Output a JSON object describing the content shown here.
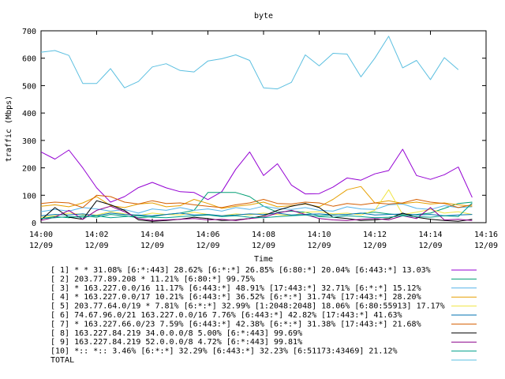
{
  "chart_data": {
    "type": "line",
    "title": "byte",
    "xlabel": "Time",
    "ylabel": "traffic (Mbps)",
    "ylim": [
      0,
      700
    ],
    "y_ticks": [
      "0",
      "100",
      "200",
      "300",
      "400",
      "500",
      "600",
      "700"
    ],
    "x_ticks": [
      {
        "time": "14:00",
        "date": "12/09"
      },
      {
        "time": "14:02",
        "date": "12/09"
      },
      {
        "time": "14:04",
        "date": "12/09"
      },
      {
        "time": "14:06",
        "date": "12/09"
      },
      {
        "time": "14:08",
        "date": "12/09"
      },
      {
        "time": "14:10",
        "date": "12/09"
      },
      {
        "time": "14:12",
        "date": "12/09"
      },
      {
        "time": "14:14",
        "date": "12/09"
      },
      {
        "time": "14:16",
        "date": "12/09"
      }
    ],
    "x_start": "14:00",
    "x_end": "14:16",
    "x_interval_seconds": 30,
    "grid": false,
    "legend_placement": "bottom",
    "series": [
      {
        "name": "[ 1] * * 31.08%  [6:*:443] 28.62% [6:*:*] 26.85% [6:80:*] 20.04% [6:443:*] 13.03%",
        "color": "#9400d3",
        "values": [
          258,
          232,
          265,
          200,
          127,
          75,
          95,
          128,
          147,
          127,
          113,
          110,
          84,
          113,
          195,
          258,
          172,
          215,
          137,
          105,
          106,
          130,
          163,
          155,
          178,
          190,
          268,
          172,
          158,
          175,
          203,
          92
        ]
      },
      {
        "name": "[ 2] 203.77.89.208 * 11.21%  [6:80:*] 99.75%",
        "color": "#009e73",
        "values": [
          15,
          22,
          18,
          25,
          20,
          30,
          25,
          18,
          22,
          30,
          35,
          45,
          110,
          110,
          110,
          95,
          60,
          38,
          42,
          38,
          25,
          28,
          30,
          34,
          38,
          32,
          28,
          30,
          35,
          52,
          70,
          75
        ]
      },
      {
        "name": "[ 3] * 163.227.0.0/16 11.17%  [6:443:*] 48.91% [17:443:*] 32.71% [6:*:*] 15.12%",
        "color": "#56b4e9",
        "values": [
          40,
          48,
          42,
          55,
          50,
          42,
          48,
          35,
          50,
          45,
          55,
          45,
          50,
          42,
          55,
          48,
          60,
          52,
          48,
          55,
          45,
          42,
          58,
          50,
          48,
          65,
          68,
          52,
          48,
          62,
          55,
          58
        ]
      },
      {
        "name": "[ 4] * 163.227.0.0/17 10.21%  [6:443:*] 36.52% [6:*:*] 31.74% [17:443:*] 28.20%",
        "color": "#e69f00",
        "values": [
          60,
          65,
          58,
          72,
          95,
          62,
          55,
          68,
          72,
          58,
          62,
          85,
          70,
          52,
          60,
          65,
          75,
          58,
          62,
          68,
          58,
          85,
          120,
          132,
          72,
          80,
          70,
          75,
          68,
          72,
          65,
          60
        ]
      },
      {
        "name": "[ 5] 203.77.64.0/19 * 7.81%  [6:*:*] 32.99% [1:2048:2048] 18.06% [6:80:55913] 17.17%",
        "color": "#f0e442",
        "values": [
          20,
          25,
          35,
          30,
          28,
          40,
          32,
          25,
          35,
          30,
          28,
          38,
          30,
          25,
          32,
          28,
          35,
          30,
          25,
          38,
          40,
          32,
          35,
          28,
          45,
          120,
          30,
          38,
          48,
          35,
          40,
          30
        ]
      },
      {
        "name": "[ 6] 74.67.96.0/21 163.227.0.0/16 7.76%  [6:443:*] 42.82% [17:443:*] 41.63%",
        "color": "#0072b2",
        "values": [
          25,
          30,
          28,
          32,
          25,
          35,
          30,
          28,
          25,
          30,
          35,
          28,
          30,
          25,
          28,
          32,
          30,
          35,
          28,
          30,
          32,
          28,
          30,
          35,
          28,
          30,
          32,
          28,
          30,
          25,
          28,
          30
        ]
      },
      {
        "name": "[ 7] * 163.227.66.0/23 7.59%  [6:443:*] 42.38% [6:*:*] 31.38% [17:443:*] 21.68%",
        "color": "#d55e00",
        "values": [
          70,
          75,
          72,
          55,
          100,
          95,
          75,
          68,
          80,
          70,
          72,
          65,
          60,
          55,
          65,
          72,
          85,
          70,
          68,
          75,
          72,
          60,
          70,
          65,
          72,
          68,
          72,
          85,
          75,
          70,
          55,
          65
        ]
      },
      {
        "name": "[ 8] 163.227.84.219 34.0.0.0/8 5.00%  [6:*:443] 99.69%",
        "color": "#000000",
        "values": [
          10,
          55,
          20,
          12,
          80,
          65,
          45,
          10,
          5,
          8,
          12,
          20,
          15,
          8,
          10,
          15,
          25,
          45,
          60,
          70,
          55,
          20,
          15,
          8,
          10,
          15,
          35,
          20,
          12,
          8,
          5,
          12
        ]
      },
      {
        "name": "[ 9] 163.227.84.219 52.0.0.0/8 4.72%  [6:*:443] 99.81%",
        "color": "#8b008b",
        "values": [
          8,
          20,
          45,
          12,
          45,
          60,
          40,
          15,
          8,
          10,
          12,
          15,
          10,
          12,
          8,
          15,
          20,
          35,
          45,
          30,
          15,
          10,
          8,
          12,
          15,
          10,
          25,
          15,
          55,
          10,
          12,
          8
        ]
      },
      {
        "name": "[10] *:: *:: 3.46%  [6:*:*] 32.29% [6:443:*] 32.23% [6:51173:43469] 21.12%",
        "color": "#00a08a",
        "values": [
          15,
          18,
          22,
          20,
          25,
          18,
          22,
          25,
          20,
          18,
          22,
          25,
          28,
          22,
          25,
          20,
          18,
          22,
          25,
          28,
          22,
          20,
          25,
          22,
          18,
          20,
          25,
          22,
          20,
          25,
          22,
          72
        ]
      },
      {
        "name": "TOTAL",
        "color": "#5bbfe0",
        "values": [
          622,
          628,
          610,
          508,
          508,
          562,
          492,
          515,
          568,
          580,
          555,
          550,
          590,
          598,
          612,
          592,
          492,
          488,
          512,
          612,
          572,
          618,
          615,
          532,
          600,
          680,
          565,
          592,
          522,
          602,
          558,
          null
        ]
      }
    ]
  }
}
